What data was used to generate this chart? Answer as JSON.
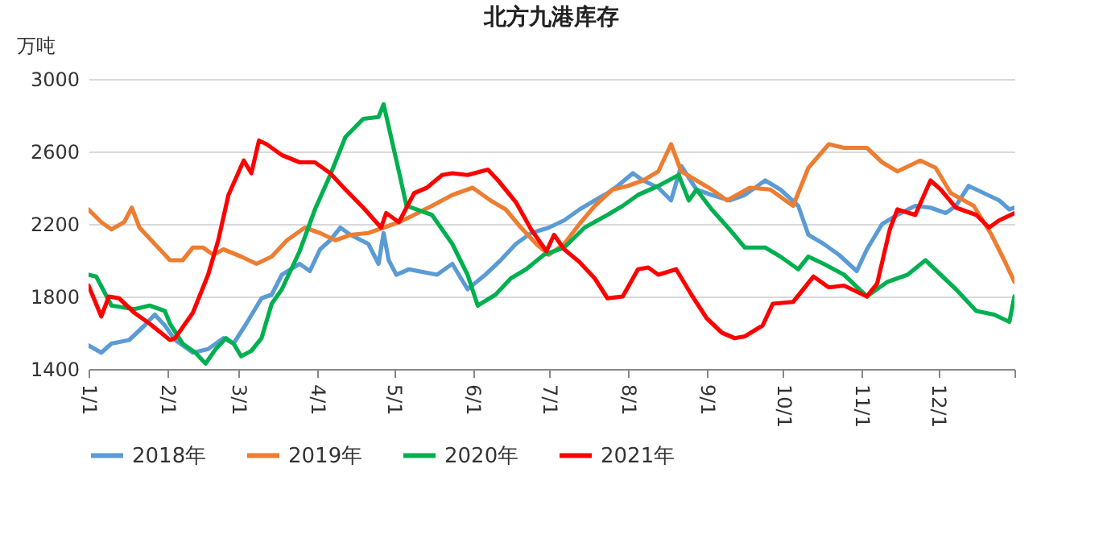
{
  "chart_data": {
    "type": "line",
    "title": "北方九港库存",
    "ylabel": "万吨",
    "xlim": [
      "--01-01",
      "--12-31"
    ],
    "xticks": [
      {
        "value": "--01-01",
        "label": "1/1"
      },
      {
        "value": "--02-01",
        "label": "2/1"
      },
      {
        "value": "--03-01",
        "label": "3/1"
      },
      {
        "value": "--04-01",
        "label": "4/1"
      },
      {
        "value": "--05-01",
        "label": "5/1"
      },
      {
        "value": "--06-01",
        "label": "6/1"
      },
      {
        "value": "--07-01",
        "label": "7/1"
      },
      {
        "value": "--08-01",
        "label": "8/1"
      },
      {
        "value": "--09-01",
        "label": "9/1"
      },
      {
        "value": "--10-01",
        "label": "10/1"
      },
      {
        "value": "--11-01",
        "label": "11/1"
      },
      {
        "value": "--12-01",
        "label": "12/1"
      },
      {
        "value": "--12-31",
        "label": null
      }
    ],
    "ylim": [
      1400,
      3000
    ],
    "yticks": [
      1400,
      1800,
      2200,
      2600,
      3000
    ],
    "grid": "y",
    "legend": "bottom",
    "series": [
      {
        "name": "2018年",
        "color": "#5b9bd5",
        "x": [
          "--01-01",
          "--01-06",
          "--01-10",
          "--01-17",
          "--01-23",
          "--01-27",
          "--01-31",
          "--02-04",
          "--02-11",
          "--02-17",
          "--02-23",
          "--02-27",
          "--03-04",
          "--03-10",
          "--03-14",
          "--03-18",
          "--03-25",
          "--03-29",
          "--04-02",
          "--04-06",
          "--04-10",
          "--04-14",
          "--04-21",
          "--04-25",
          "--04-27",
          "--04-29",
          "--05-02",
          "--05-07",
          "--05-18",
          "--05-24",
          "--05-30",
          "--06-06",
          "--06-12",
          "--06-18",
          "--06-24",
          "--07-01",
          "--07-07",
          "--07-13",
          "--07-19",
          "--07-24",
          "--07-28",
          "--08-03",
          "--08-07",
          "--08-13",
          "--08-18",
          "--08-22",
          "--08-28",
          "--09-03",
          "--09-10",
          "--09-16",
          "--09-24",
          "--09-30",
          "--10-07",
          "--10-11",
          "--10-17",
          "--10-23",
          "--10-30",
          "--11-03",
          "--11-09",
          "--11-15",
          "--11-22",
          "--11-28",
          "--12-04",
          "--12-08",
          "--12-13",
          "--12-19",
          "--12-25",
          "--12-29",
          "--12-31"
        ],
        "values": [
          1530,
          1490,
          1540,
          1560,
          1640,
          1700,
          1640,
          1560,
          1490,
          1510,
          1570,
          1540,
          1650,
          1790,
          1810,
          1920,
          1980,
          1940,
          2060,
          2110,
          2180,
          2140,
          2090,
          1980,
          2150,
          2000,
          1920,
          1950,
          1920,
          1980,
          1840,
          1920,
          2000,
          2090,
          2150,
          2180,
          2220,
          2280,
          2330,
          2370,
          2410,
          2480,
          2440,
          2400,
          2330,
          2520,
          2390,
          2360,
          2330,
          2360,
          2440,
          2390,
          2300,
          2140,
          2090,
          2030,
          1940,
          2060,
          2200,
          2250,
          2300,
          2290,
          2260,
          2300,
          2410,
          2370,
          2330,
          2280,
          2290
        ]
      },
      {
        "name": "2019年",
        "color": "#ed7d31",
        "x": [
          "--01-01",
          "--01-06",
          "--01-10",
          "--01-15",
          "--01-18",
          "--01-21",
          "--01-27",
          "--02-02",
          "--02-07",
          "--02-11",
          "--02-15",
          "--02-19",
          "--02-23",
          "--03-02",
          "--03-08",
          "--03-14",
          "--03-20",
          "--03-27",
          "--04-02",
          "--04-08",
          "--04-14",
          "--04-21",
          "--04-27",
          "--05-03",
          "--05-09",
          "--05-16",
          "--05-24",
          "--06-01",
          "--06-08",
          "--06-14",
          "--06-20",
          "--06-26",
          "--07-01",
          "--07-07",
          "--07-13",
          "--07-19",
          "--07-26",
          "--08-01",
          "--08-07",
          "--08-13",
          "--08-18",
          "--08-22",
          "--08-28",
          "--09-03",
          "--09-09",
          "--09-18",
          "--09-26",
          "--10-05",
          "--10-11",
          "--10-19",
          "--10-25",
          "--11-03",
          "--11-09",
          "--11-15",
          "--11-24",
          "--11-30",
          "--12-06",
          "--12-15",
          "--12-22",
          "--12-27",
          "--12-31"
        ],
        "values": [
          2280,
          2210,
          2170,
          2210,
          2290,
          2180,
          2090,
          2000,
          2000,
          2070,
          2070,
          2030,
          2060,
          2020,
          1980,
          2020,
          2110,
          2180,
          2150,
          2110,
          2140,
          2150,
          2180,
          2210,
          2250,
          2300,
          2360,
          2400,
          2330,
          2280,
          2180,
          2090,
          2030,
          2090,
          2200,
          2300,
          2390,
          2410,
          2440,
          2490,
          2640,
          2490,
          2440,
          2390,
          2330,
          2400,
          2390,
          2300,
          2510,
          2640,
          2620,
          2620,
          2540,
          2490,
          2550,
          2510,
          2370,
          2300,
          2140,
          2000,
          1880
        ]
      },
      {
        "name": "2020年",
        "color": "#00b050",
        "x": [
          "--01-01",
          "--01-04",
          "--01-10",
          "--01-19",
          "--01-25",
          "--01-31",
          "--02-02",
          "--02-07",
          "--02-12",
          "--02-16",
          "--02-20",
          "--02-24",
          "--02-27",
          "--03-02",
          "--03-06",
          "--03-10",
          "--03-14",
          "--03-18",
          "--03-25",
          "--03-31",
          "--04-06",
          "--04-12",
          "--04-19",
          "--04-25",
          "--04-27",
          "--05-03",
          "--05-06",
          "--05-16",
          "--05-24",
          "--05-30",
          "--06-03",
          "--06-10",
          "--06-16",
          "--06-22",
          "--06-29",
          "--07-07",
          "--07-15",
          "--07-24",
          "--07-30",
          "--08-05",
          "--08-13",
          "--08-21",
          "--08-25",
          "--08-28",
          "--09-03",
          "--09-10",
          "--09-16",
          "--09-24",
          "--09-30",
          "--10-07",
          "--10-11",
          "--10-17",
          "--10-25",
          "--11-03",
          "--11-11",
          "--11-19",
          "--11-26",
          "--12-02",
          "--12-08",
          "--12-16",
          "--12-23",
          "--12-29",
          "--12-31"
        ],
        "values": [
          1920,
          1910,
          1750,
          1730,
          1750,
          1720,
          1650,
          1540,
          1490,
          1430,
          1510,
          1570,
          1540,
          1470,
          1500,
          1570,
          1760,
          1840,
          2050,
          2280,
          2470,
          2680,
          2780,
          2790,
          2860,
          2490,
          2300,
          2250,
          2090,
          1920,
          1750,
          1810,
          1900,
          1950,
          2030,
          2070,
          2180,
          2250,
          2300,
          2360,
          2410,
          2470,
          2330,
          2390,
          2280,
          2170,
          2070,
          2070,
          2020,
          1950,
          2020,
          1980,
          1920,
          1800,
          1880,
          1920,
          2000,
          1920,
          1840,
          1720,
          1700,
          1660,
          1800
        ]
      },
      {
        "name": "2021年",
        "color": "#ff0000",
        "x": [
          "--01-01",
          "--01-06",
          "--01-09",
          "--01-13",
          "--01-19",
          "--01-25",
          "--02-02",
          "--02-04",
          "--02-11",
          "--02-17",
          "--02-21",
          "--02-25",
          "--03-03",
          "--03-06",
          "--03-09",
          "--03-12",
          "--03-18",
          "--03-25",
          "--03-31",
          "--04-06",
          "--04-12",
          "--04-19",
          "--04-26",
          "--04-28",
          "--05-03",
          "--05-09",
          "--05-14",
          "--05-20",
          "--05-24",
          "--05-30",
          "--06-07",
          "--06-11",
          "--06-18",
          "--06-24",
          "--06-30",
          "--07-03",
          "--07-07",
          "--07-13",
          "--07-19",
          "--07-24",
          "--07-30",
          "--08-05",
          "--08-09",
          "--08-13",
          "--08-20",
          "--08-26",
          "--09-01",
          "--09-07",
          "--09-12",
          "--09-16",
          "--09-23",
          "--09-27",
          "--10-05",
          "--10-13",
          "--10-19",
          "--10-25",
          "--11-03",
          "--11-07",
          "--11-12",
          "--11-15",
          "--11-22",
          "--11-28",
          "--12-02",
          "--12-08",
          "--12-16",
          "--12-21",
          "--12-25",
          "--12-31"
        ],
        "values": [
          1860,
          1690,
          1800,
          1790,
          1710,
          1650,
          1560,
          1570,
          1710,
          1920,
          2110,
          2360,
          2550,
          2480,
          2660,
          2640,
          2580,
          2540,
          2540,
          2480,
          2390,
          2290,
          2180,
          2260,
          2210,
          2370,
          2400,
          2470,
          2480,
          2470,
          2500,
          2440,
          2320,
          2170,
          2050,
          2140,
          2060,
          1990,
          1900,
          1790,
          1800,
          1950,
          1960,
          1920,
          1950,
          1810,
          1680,
          1600,
          1570,
          1580,
          1640,
          1760,
          1770,
          1910,
          1850,
          1860,
          1800,
          1870,
          2170,
          2280,
          2250,
          2440,
          2390,
          2290,
          2250,
          2180,
          2220,
          2260
        ]
      }
    ]
  }
}
